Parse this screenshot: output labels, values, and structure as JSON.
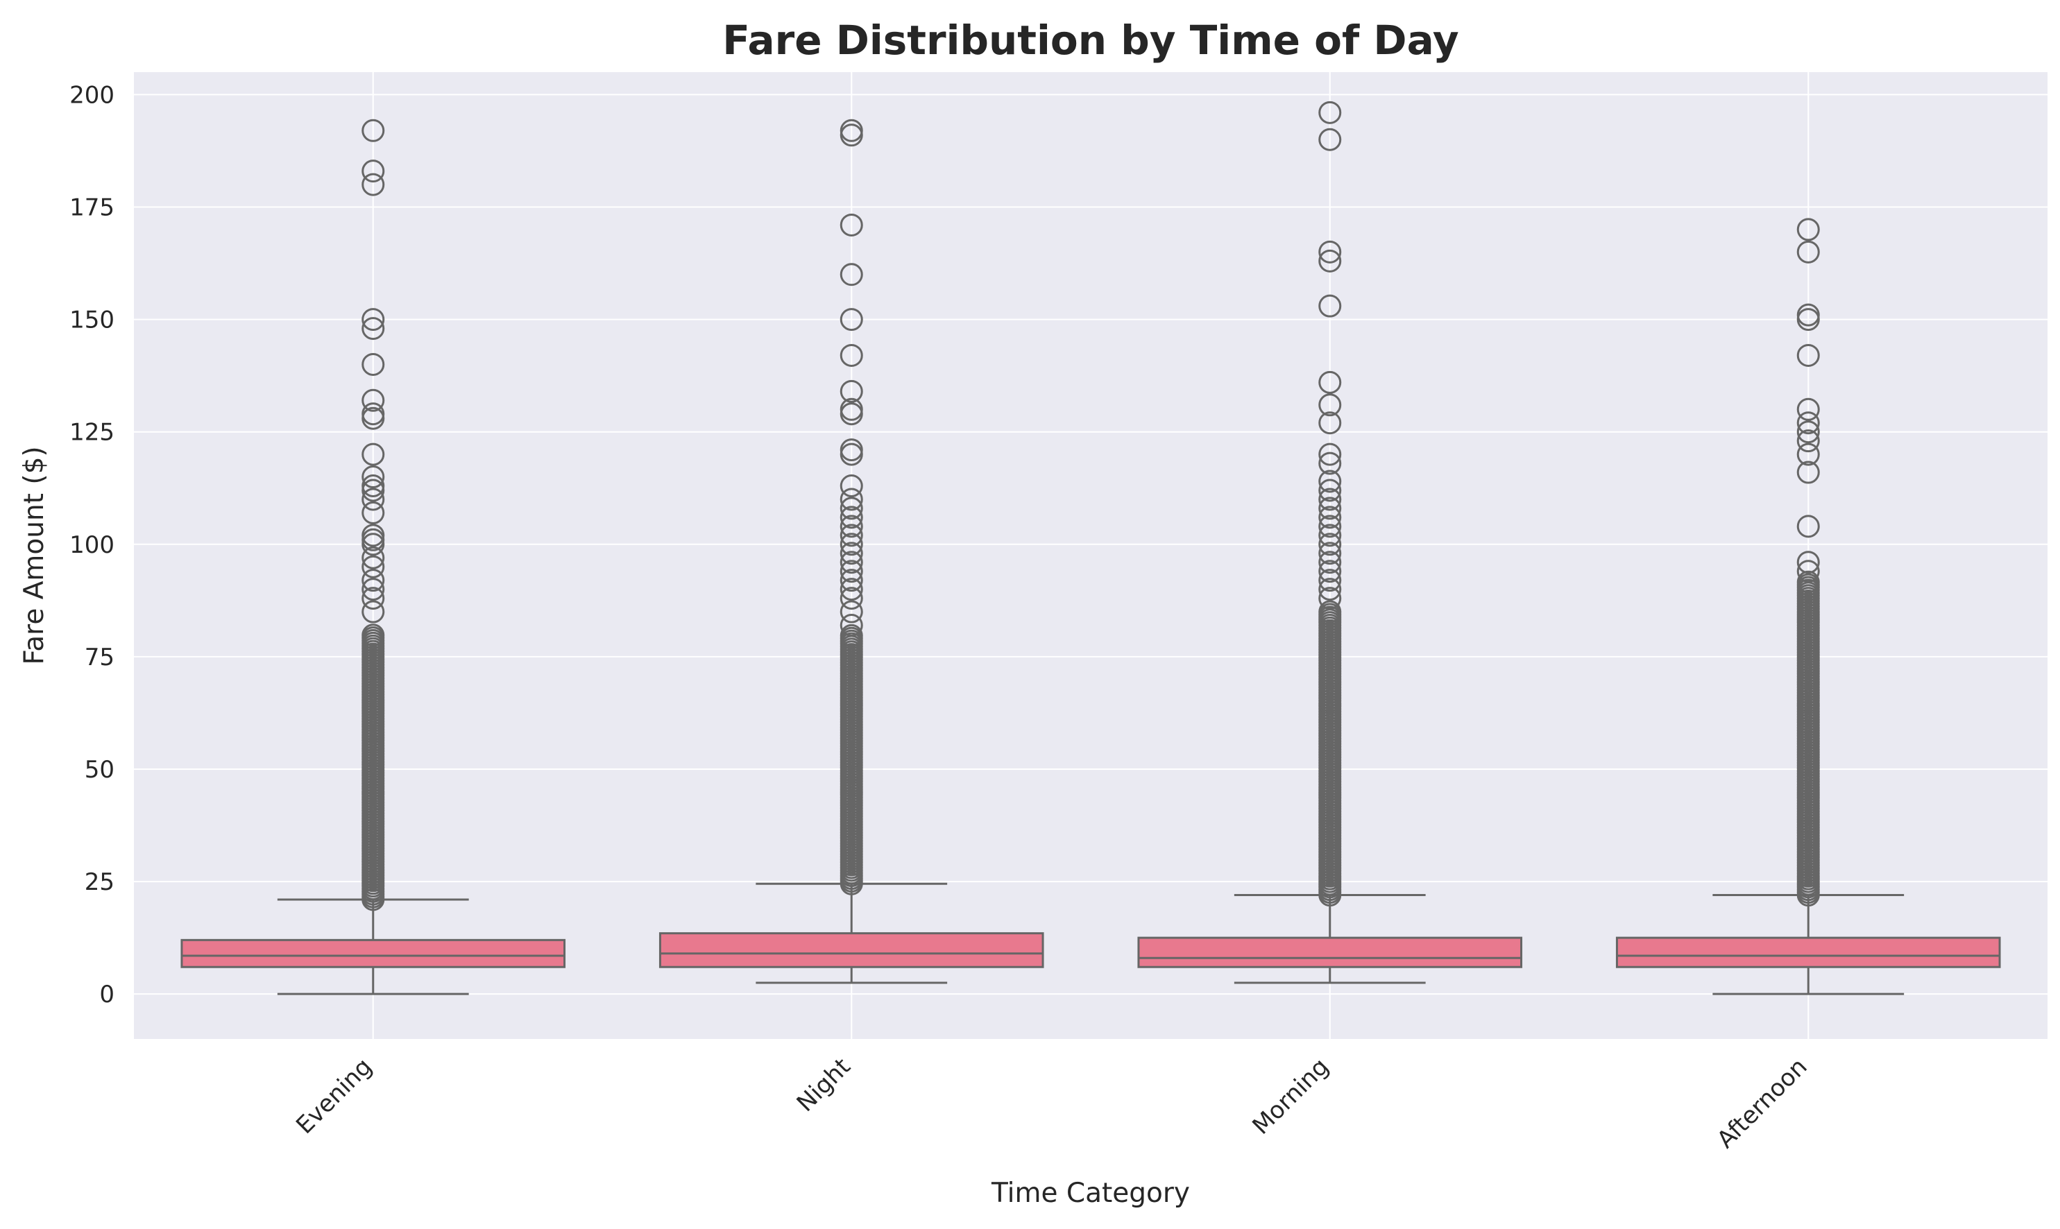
{
  "chart_data": {
    "type": "box",
    "title": "Fare Distribution by Time of Day",
    "xlabel": "Time Category",
    "ylabel": "Fare Amount ($)",
    "ylim": [
      -10,
      205
    ],
    "yticks": [
      0,
      25,
      50,
      75,
      100,
      125,
      150,
      175,
      200
    ],
    "grid": true,
    "colors": {
      "plot_background": "#eaeaf2",
      "grid": "#ffffff",
      "box_fill": "#e8798e",
      "line": "#666666",
      "text": "#262626"
    },
    "categories": [
      "Evening",
      "Night",
      "Morning",
      "Afternoon"
    ],
    "boxes": [
      {
        "name": "Evening",
        "whisker_low": 0,
        "q1": 6,
        "median": 8.5,
        "q3": 12,
        "whisker_high": 21,
        "outlier_dense_range": [
          21,
          80
        ],
        "outliers": [
          85,
          88,
          90,
          92,
          95,
          97,
          100,
          101,
          102,
          107,
          110,
          112,
          113,
          115,
          120,
          128,
          129,
          132,
          140,
          148,
          150,
          180,
          183,
          192
        ]
      },
      {
        "name": "Night",
        "whisker_low": 2.5,
        "q1": 6,
        "median": 9,
        "q3": 13.5,
        "whisker_high": 24.5,
        "outlier_dense_range": [
          24.5,
          80
        ],
        "outliers": [
          82,
          85,
          88,
          90,
          92,
          94,
          96,
          98,
          100,
          102,
          104,
          106,
          108,
          110,
          113,
          120,
          121,
          129,
          130,
          134,
          142,
          150,
          160,
          171,
          191,
          192
        ]
      },
      {
        "name": "Morning",
        "whisker_low": 2.5,
        "q1": 6,
        "median": 8,
        "q3": 12.5,
        "whisker_high": 22,
        "outlier_dense_range": [
          22,
          85
        ],
        "outliers": [
          88,
          90,
          92,
          94,
          96,
          98,
          100,
          102,
          104,
          106,
          108,
          110,
          112,
          114,
          118,
          120,
          127,
          131,
          136,
          153,
          163,
          165,
          190,
          196
        ]
      },
      {
        "name": "Afternoon",
        "whisker_low": 0,
        "q1": 6,
        "median": 8.5,
        "q3": 12.5,
        "whisker_high": 22,
        "outlier_dense_range": [
          22,
          92
        ],
        "outliers": [
          94,
          96,
          104,
          116,
          120,
          123,
          125,
          127,
          130,
          142,
          150,
          151,
          165,
          170
        ]
      }
    ]
  }
}
